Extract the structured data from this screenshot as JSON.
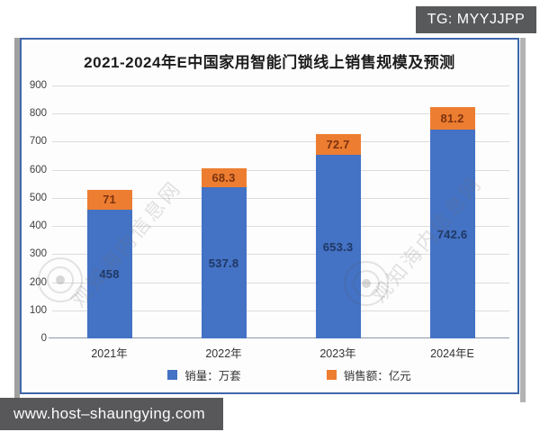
{
  "overlays": {
    "tg_badge": "TG: MYYJJPP",
    "site_badge": "www.host–shaungying.com"
  },
  "watermark": {
    "text": "观知海内信息网"
  },
  "colors": {
    "frame_border": "#3f67ab",
    "badge_background": "#58595b",
    "gridline": "#dcdcdc",
    "axis_line": "#8a99ad",
    "tick_text": "#404040"
  },
  "chart_data": {
    "type": "bar",
    "stacked": true,
    "title": "2021-2024年E中国家用智能门锁线上销售规模及预测",
    "categories": [
      "2021年",
      "2022年",
      "2023年",
      "2024年E"
    ],
    "series": [
      {
        "name": "销量：万套",
        "color": "#4472c4",
        "label_color": "#1f3864",
        "values": [
          458,
          537.8,
          653.3,
          742.6
        ]
      },
      {
        "name": "销售额：亿元",
        "color": "#ed7d31",
        "label_color": "#7c330f",
        "values": [
          71,
          68.3,
          72.7,
          81.2
        ]
      }
    ],
    "xlabel": "",
    "ylabel": "",
    "ylim": [
      0,
      900
    ],
    "ytick_step": 100,
    "grid": true,
    "legend_position": "bottom"
  }
}
